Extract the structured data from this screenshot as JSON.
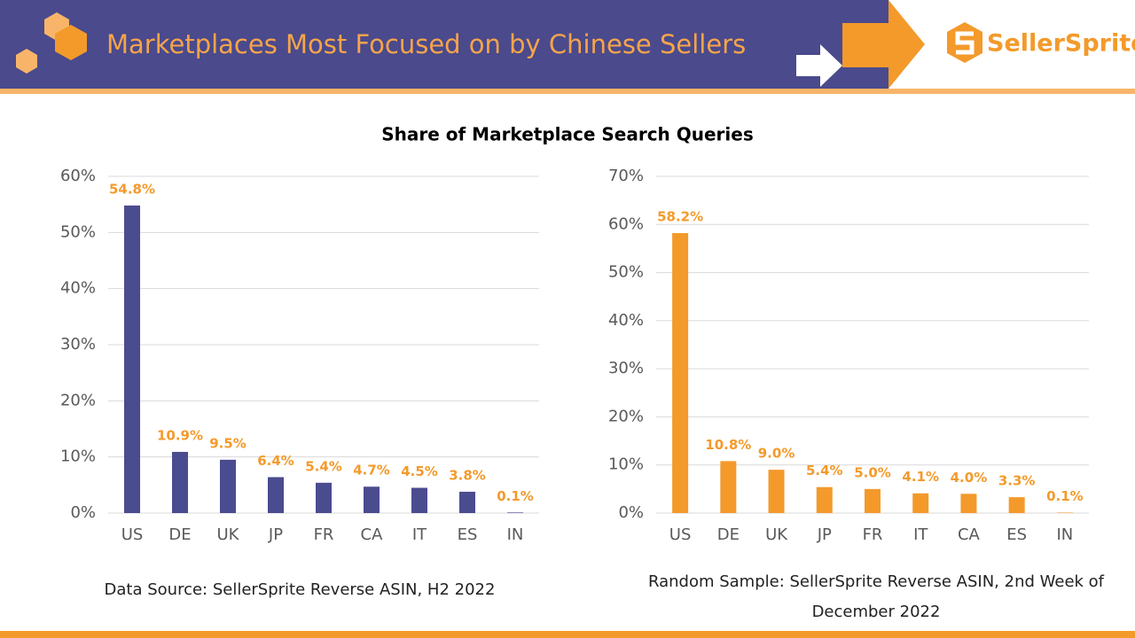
{
  "header": {
    "title": "Marketplaces Most Focused on by Chinese Sellers",
    "logo": "SellerSprite"
  },
  "heading": "Share of Marketplace Search Queries",
  "chart_data": [
    {
      "type": "bar",
      "source": "Data Source: SellerSprite Reverse ASIN, H2 2022",
      "categories": [
        "US",
        "DE",
        "UK",
        "JP",
        "FR",
        "CA",
        "IT",
        "ES",
        "IN"
      ],
      "values": [
        54.8,
        10.9,
        9.5,
        6.4,
        5.4,
        4.7,
        4.5,
        3.8,
        0.1
      ],
      "value_labels": [
        "54.8%",
        "10.9%",
        "9.5%",
        "6.4%",
        "5.4%",
        "4.7%",
        "4.5%",
        "3.8%",
        "0.1%"
      ],
      "color": "#4b4b8f",
      "label_color": "#f39a2b",
      "grid": true,
      "ylim": [
        0,
        60
      ],
      "yticks": [
        {
          "value": 0,
          "label": "0%"
        },
        {
          "value": 10,
          "label": "10%"
        },
        {
          "value": 20,
          "label": "20%"
        },
        {
          "value": 30,
          "label": "30%"
        },
        {
          "value": 40,
          "label": "40%"
        },
        {
          "value": 50,
          "label": "50%"
        },
        {
          "value": 60,
          "label": "60%"
        }
      ]
    },
    {
      "type": "bar",
      "source": "Random Sample: SellerSprite Reverse ASIN, 2nd Week of December 2022",
      "categories": [
        "US",
        "DE",
        "UK",
        "JP",
        "FR",
        "IT",
        "CA",
        "ES",
        "IN"
      ],
      "values": [
        58.2,
        10.8,
        9.0,
        5.4,
        5.0,
        4.1,
        4.0,
        3.3,
        0.1
      ],
      "value_labels": [
        "58.2%",
        "10.8%",
        "9.0%",
        "5.4%",
        "5.0%",
        "4.1%",
        "4.0%",
        "3.3%",
        "0.1%"
      ],
      "color": "#f39a2b",
      "label_color": "#f39a2b",
      "grid": true,
      "ylim": [
        0,
        70
      ],
      "yticks": [
        {
          "value": 0,
          "label": "0%"
        },
        {
          "value": 10,
          "label": "10%"
        },
        {
          "value": 20,
          "label": "20%"
        },
        {
          "value": 30,
          "label": "30%"
        },
        {
          "value": 40,
          "label": "40%"
        },
        {
          "value": 50,
          "label": "50%"
        },
        {
          "value": 60,
          "label": "60%"
        },
        {
          "value": 70,
          "label": "70%"
        }
      ]
    }
  ]
}
